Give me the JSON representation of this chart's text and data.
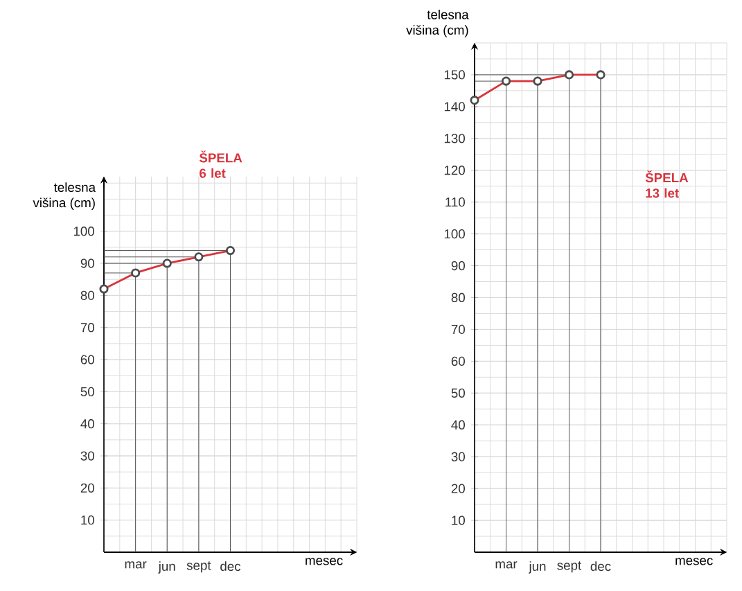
{
  "chart_data": [
    {
      "type": "line",
      "categories": [
        null,
        "mar",
        "jun",
        "sept",
        "dec"
      ],
      "values": [
        82,
        87,
        90,
        92,
        94
      ],
      "color": "#d8343c",
      "marker": "circle",
      "ylim": [
        0,
        117
      ],
      "yticks": [
        10,
        20,
        30,
        40,
        50,
        60,
        70,
        80,
        90,
        100
      ],
      "xlabel": "mesec",
      "ylabel": "telesna višina (cm)",
      "annotations": [
        "ŠPELA 6 let"
      ],
      "grid": true,
      "ref_lines": [
        {
          "axis": "y",
          "value": 87
        },
        {
          "axis": "y",
          "value": 90
        },
        {
          "axis": "y",
          "value": 92
        },
        {
          "axis": "y",
          "value": 94
        }
      ]
    },
    {
      "type": "line",
      "categories": [
        null,
        "mar",
        "jun",
        "sept",
        "dec"
      ],
      "values": [
        142,
        148,
        148,
        150,
        150
      ],
      "color": "#d8343c",
      "marker": "circle",
      "ylim": [
        0,
        160
      ],
      "yticks": [
        10,
        20,
        30,
        40,
        50,
        60,
        70,
        80,
        90,
        100,
        110,
        120,
        130,
        140,
        150
      ],
      "xlabel": "mesec",
      "ylabel": "telesna višina (cm)",
      "annotations": [
        "ŠPELA 13 let"
      ],
      "grid": true,
      "ref_lines": [
        {
          "axis": "y",
          "value": 148
        },
        {
          "axis": "y",
          "value": 150
        }
      ]
    }
  ]
}
